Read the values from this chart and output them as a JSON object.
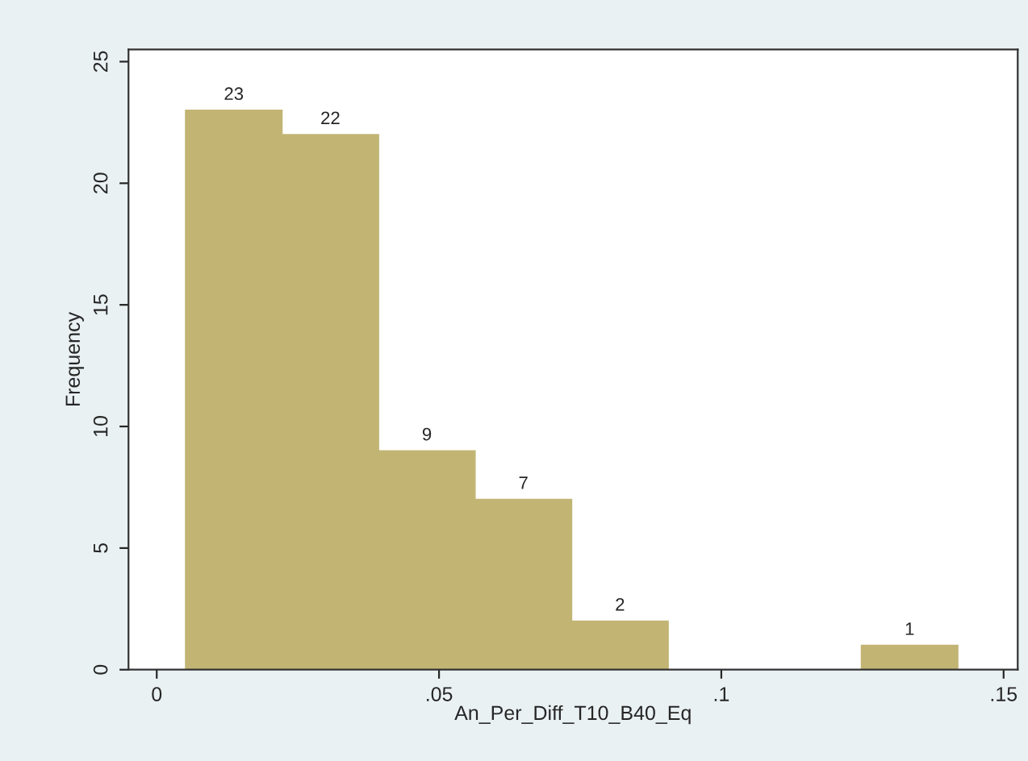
{
  "chart_data": {
    "type": "histogram",
    "xlabel": "An_Per_Diff_T10_B40_Eq",
    "ylabel": "Frequency",
    "bins": [
      0.0051,
      0.0222,
      0.0393,
      0.0564,
      0.0735,
      0.0906,
      0.1077,
      0.1248,
      0.1419
    ],
    "values": [
      23,
      22,
      9,
      7,
      2,
      0,
      0,
      1
    ],
    "value_labels": [
      "23",
      "22",
      "9",
      "7",
      "2",
      null,
      null,
      "1"
    ],
    "color": "#c2b574",
    "xlim": [
      -0.005,
      0.1525
    ],
    "ylim": [
      0,
      25.5
    ],
    "xticks": [
      0,
      {
        "value": 0.05,
        "label": ".05"
      },
      {
        "value": 0.1,
        "label": ".1"
      },
      {
        "value": 0.15,
        "label": ".15"
      }
    ],
    "yticks": [
      0,
      5,
      10,
      15,
      20,
      25
    ],
    "grid": false
  }
}
